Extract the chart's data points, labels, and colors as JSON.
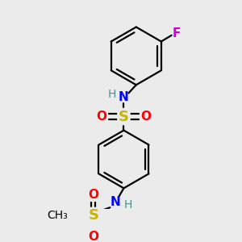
{
  "bg_color": "#ebebeb",
  "bond_color": "#000000",
  "S_color": "#c8b400",
  "O_color": "#ff0000",
  "N_color": "#0000ff",
  "N_H_color": "#4a9090",
  "F_color": "#cc00cc",
  "C_color": "#000000",
  "line_width": 1.6,
  "dbo": 0.025,
  "figsize": [
    3.0,
    3.0
  ],
  "dpi": 100,
  "xlim": [
    0.0,
    3.0
  ],
  "ylim": [
    0.0,
    3.0
  ]
}
